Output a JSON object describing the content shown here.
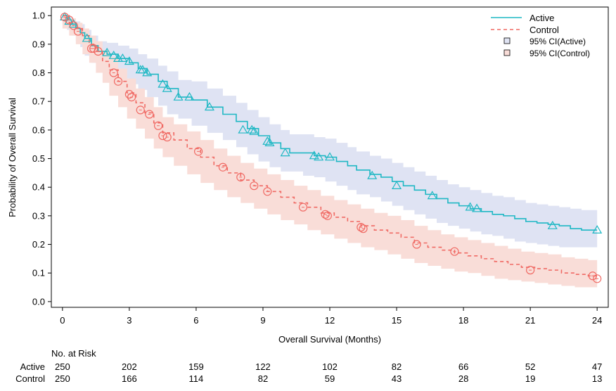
{
  "chart_data": {
    "type": "line",
    "title": "",
    "xlabel": "Overall Survival (Months)",
    "ylabel": "Probability of Overall Survival",
    "xlim": [
      -0.5,
      24.5
    ],
    "ylim": [
      -0.02,
      1.03
    ],
    "x_ticks": [
      0,
      3,
      6,
      9,
      12,
      15,
      18,
      21,
      24
    ],
    "y_ticks": [
      0.0,
      0.1,
      0.2,
      0.3,
      0.4,
      0.5,
      0.6,
      0.7,
      0.8,
      0.9,
      1.0
    ],
    "grid": false,
    "legend_position": "top-right",
    "legend": {
      "active": "Active",
      "control": "Control",
      "ci_active": "95% CI(Active)",
      "ci_control": "95% CI(Control)"
    },
    "colors": {
      "active": "#1fb8c4",
      "control": "#f06a64",
      "ci_active": "#dfe3f3",
      "ci_control": "#f9ddd8"
    },
    "series": [
      {
        "name": "Active",
        "style": "solid step",
        "x": [
          0,
          0.2,
          0.4,
          0.6,
          0.8,
          1.0,
          1.3,
          1.6,
          2.0,
          2.5,
          3.0,
          3.4,
          3.8,
          4.3,
          4.7,
          5.2,
          5.8,
          6.5,
          7.2,
          7.8,
          8.3,
          8.8,
          9.3,
          9.8,
          10.2,
          10.8,
          11.3,
          11.8,
          12.3,
          12.8,
          13.2,
          13.8,
          14.3,
          14.8,
          15.3,
          15.8,
          16.3,
          16.8,
          17.3,
          17.8,
          18.3,
          18.8,
          19.3,
          19.8,
          20.3,
          20.8,
          21.3,
          21.8,
          22.3,
          22.8,
          23.3,
          24.0
        ],
        "y": [
          1.0,
          0.985,
          0.97,
          0.955,
          0.94,
          0.92,
          0.895,
          0.875,
          0.865,
          0.85,
          0.835,
          0.815,
          0.795,
          0.77,
          0.745,
          0.715,
          0.705,
          0.68,
          0.655,
          0.63,
          0.605,
          0.58,
          0.555,
          0.535,
          0.52,
          0.52,
          0.51,
          0.505,
          0.49,
          0.475,
          0.46,
          0.445,
          0.435,
          0.42,
          0.405,
          0.39,
          0.375,
          0.36,
          0.345,
          0.335,
          0.325,
          0.315,
          0.305,
          0.3,
          0.29,
          0.28,
          0.275,
          0.27,
          0.265,
          0.255,
          0.25,
          0.25
        ],
        "ci_lower": [
          1.0,
          0.97,
          0.95,
          0.93,
          0.91,
          0.89,
          0.86,
          0.835,
          0.82,
          0.8,
          0.78,
          0.76,
          0.74,
          0.715,
          0.685,
          0.655,
          0.64,
          0.615,
          0.59,
          0.565,
          0.54,
          0.515,
          0.49,
          0.47,
          0.455,
          0.455,
          0.44,
          0.435,
          0.42,
          0.405,
          0.39,
          0.375,
          0.365,
          0.35,
          0.335,
          0.32,
          0.305,
          0.29,
          0.275,
          0.265,
          0.255,
          0.245,
          0.235,
          0.23,
          0.22,
          0.21,
          0.205,
          0.2,
          0.195,
          0.19,
          0.19,
          0.19
        ],
        "ci_upper": [
          1.0,
          0.998,
          0.99,
          0.98,
          0.97,
          0.95,
          0.93,
          0.91,
          0.905,
          0.895,
          0.885,
          0.865,
          0.85,
          0.825,
          0.805,
          0.775,
          0.77,
          0.745,
          0.72,
          0.695,
          0.67,
          0.645,
          0.62,
          0.6,
          0.585,
          0.585,
          0.575,
          0.57,
          0.555,
          0.54,
          0.525,
          0.51,
          0.5,
          0.485,
          0.47,
          0.455,
          0.44,
          0.425,
          0.41,
          0.4,
          0.39,
          0.38,
          0.37,
          0.365,
          0.355,
          0.345,
          0.34,
          0.335,
          0.33,
          0.325,
          0.32,
          0.32
        ],
        "censored_x": [
          0.1,
          0.3,
          0.5,
          1.1,
          2.0,
          2.3,
          2.5,
          2.7,
          3.0,
          3.5,
          3.6,
          3.8,
          4.5,
          4.7,
          5.2,
          5.7,
          6.6,
          8.1,
          8.5,
          8.6,
          9.2,
          9.3,
          10.0,
          11.3,
          11.5,
          12.0,
          13.9,
          15.0,
          16.6,
          18.3,
          18.6,
          22.0,
          24.0
        ],
        "censored_y": [
          0.995,
          0.98,
          0.97,
          0.92,
          0.87,
          0.86,
          0.85,
          0.85,
          0.84,
          0.81,
          0.81,
          0.8,
          0.76,
          0.745,
          0.715,
          0.715,
          0.68,
          0.6,
          0.6,
          0.595,
          0.56,
          0.555,
          0.52,
          0.51,
          0.505,
          0.505,
          0.44,
          0.405,
          0.37,
          0.33,
          0.325,
          0.265,
          0.25
        ]
      },
      {
        "name": "Control",
        "style": "dashed step",
        "x": [
          0,
          0.3,
          0.6,
          0.9,
          1.2,
          1.5,
          1.8,
          2.1,
          2.5,
          2.9,
          3.3,
          3.7,
          4.1,
          4.5,
          5.0,
          5.6,
          6.2,
          6.8,
          7.4,
          8.0,
          8.6,
          9.2,
          9.8,
          10.4,
          11.0,
          11.6,
          12.2,
          12.8,
          13.4,
          14.0,
          14.6,
          15.2,
          15.8,
          16.4,
          17.0,
          17.6,
          18.2,
          18.8,
          19.4,
          20.0,
          20.6,
          21.2,
          21.8,
          22.4,
          23.0,
          23.6,
          24.0
        ],
        "y": [
          1.0,
          0.975,
          0.955,
          0.93,
          0.9,
          0.875,
          0.84,
          0.81,
          0.77,
          0.73,
          0.695,
          0.66,
          0.625,
          0.59,
          0.565,
          0.535,
          0.505,
          0.475,
          0.45,
          0.425,
          0.405,
          0.385,
          0.365,
          0.345,
          0.33,
          0.31,
          0.295,
          0.28,
          0.265,
          0.25,
          0.24,
          0.225,
          0.205,
          0.19,
          0.18,
          0.17,
          0.16,
          0.15,
          0.14,
          0.13,
          0.12,
          0.115,
          0.11,
          0.1,
          0.095,
          0.09,
          0.09
        ],
        "ci_lower": [
          1.0,
          0.955,
          0.93,
          0.9,
          0.865,
          0.835,
          0.8,
          0.765,
          0.72,
          0.68,
          0.64,
          0.605,
          0.57,
          0.535,
          0.505,
          0.475,
          0.445,
          0.415,
          0.39,
          0.365,
          0.345,
          0.325,
          0.305,
          0.285,
          0.27,
          0.25,
          0.235,
          0.22,
          0.205,
          0.19,
          0.18,
          0.165,
          0.15,
          0.135,
          0.125,
          0.115,
          0.105,
          0.1,
          0.09,
          0.08,
          0.075,
          0.07,
          0.065,
          0.06,
          0.055,
          0.05,
          0.05
        ],
        "ci_upper": [
          1.0,
          0.99,
          0.975,
          0.955,
          0.93,
          0.91,
          0.88,
          0.855,
          0.815,
          0.78,
          0.745,
          0.715,
          0.68,
          0.645,
          0.62,
          0.595,
          0.565,
          0.535,
          0.51,
          0.485,
          0.465,
          0.445,
          0.425,
          0.405,
          0.39,
          0.37,
          0.355,
          0.34,
          0.325,
          0.31,
          0.3,
          0.285,
          0.265,
          0.25,
          0.235,
          0.225,
          0.215,
          0.205,
          0.195,
          0.185,
          0.175,
          0.17,
          0.165,
          0.155,
          0.15,
          0.145,
          0.145
        ],
        "censored_x": [
          0.1,
          0.3,
          0.5,
          0.7,
          1.3,
          1.4,
          1.6,
          2.3,
          2.5,
          3.0,
          3.1,
          3.5,
          3.9,
          4.3,
          4.5,
          4.7,
          6.1,
          7.2,
          8.0,
          8.6,
          9.2,
          10.8,
          11.8,
          11.9,
          13.4,
          13.5,
          15.9,
          17.6,
          21.0,
          23.8,
          24.0
        ],
        "censored_y": [
          0.995,
          0.985,
          0.965,
          0.945,
          0.885,
          0.885,
          0.875,
          0.8,
          0.77,
          0.725,
          0.715,
          0.67,
          0.655,
          0.615,
          0.58,
          0.575,
          0.525,
          0.47,
          0.435,
          0.405,
          0.385,
          0.33,
          0.305,
          0.3,
          0.26,
          0.255,
          0.2,
          0.175,
          0.11,
          0.09,
          0.08
        ]
      }
    ],
    "risk_table": {
      "header": "No. at Risk",
      "times": [
        0,
        3,
        6,
        9,
        12,
        15,
        18,
        21,
        24
      ],
      "rows": [
        {
          "label": "Active",
          "values": [
            "250",
            "202",
            "159",
            "122",
            "102",
            "82",
            "66",
            "52",
            "47"
          ]
        },
        {
          "label": "Control",
          "values": [
            "250",
            "166",
            "114",
            "82",
            "59",
            "43",
            "28",
            "19",
            "13"
          ]
        }
      ]
    }
  }
}
